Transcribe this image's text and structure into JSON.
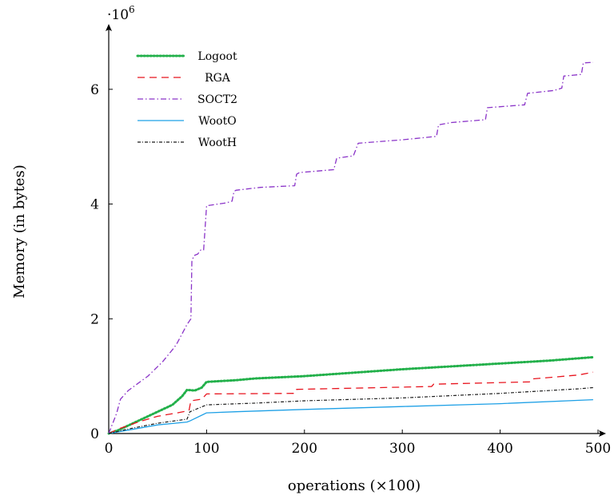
{
  "chart_data": {
    "type": "line",
    "title": "",
    "xlabel": "operations (×100)",
    "ylabel": "Memory (in bytes)",
    "y_multiplier": "·10",
    "y_multiplier_exp": "6",
    "xlim": [
      0,
      500
    ],
    "ylim": [
      0,
      7
    ],
    "xticks": [
      0,
      100,
      200,
      300,
      400,
      500
    ],
    "yticks": [
      0,
      2,
      4,
      6
    ],
    "x_tick_labels": [
      "0",
      "100",
      "200",
      "300",
      "400",
      "500"
    ],
    "y_tick_labels": [
      "0",
      "2",
      "4",
      "6"
    ],
    "grid": false,
    "legend_position": "top-left",
    "series": [
      {
        "name": "Logoot",
        "color": "#22b04a",
        "style": "dotted-thick",
        "points": [
          [
            0,
            0
          ],
          [
            10,
            0.06
          ],
          [
            30,
            0.22
          ],
          [
            50,
            0.38
          ],
          [
            65,
            0.5
          ],
          [
            75,
            0.65
          ],
          [
            80,
            0.76
          ],
          [
            88,
            0.75
          ],
          [
            95,
            0.8
          ],
          [
            100,
            0.9
          ],
          [
            130,
            0.93
          ],
          [
            150,
            0.96
          ],
          [
            200,
            1.0
          ],
          [
            250,
            1.06
          ],
          [
            300,
            1.12
          ],
          [
            350,
            1.17
          ],
          [
            400,
            1.22
          ],
          [
            450,
            1.27
          ],
          [
            495,
            1.33
          ]
        ]
      },
      {
        "name": "RGA",
        "color": "#e8141e",
        "style": "dashed",
        "points": [
          [
            0,
            0
          ],
          [
            10,
            0.08
          ],
          [
            30,
            0.2
          ],
          [
            50,
            0.3
          ],
          [
            70,
            0.36
          ],
          [
            82,
            0.4
          ],
          [
            84,
            0.57
          ],
          [
            95,
            0.6
          ],
          [
            100,
            0.69
          ],
          [
            190,
            0.7
          ],
          [
            192,
            0.77
          ],
          [
            330,
            0.82
          ],
          [
            332,
            0.86
          ],
          [
            430,
            0.9
          ],
          [
            432,
            0.95
          ],
          [
            480,
            1.02
          ],
          [
            495,
            1.07
          ]
        ]
      },
      {
        "name": "SOCT2",
        "color": "#8a33c8",
        "style": "dashdot",
        "points": [
          [
            0,
            0
          ],
          [
            8,
            0.35
          ],
          [
            12,
            0.6
          ],
          [
            20,
            0.75
          ],
          [
            40,
            1.0
          ],
          [
            55,
            1.25
          ],
          [
            67,
            1.5
          ],
          [
            70,
            1.58
          ],
          [
            80,
            1.9
          ],
          [
            84,
            2.0
          ],
          [
            85,
            3.0
          ],
          [
            87,
            3.1
          ],
          [
            91,
            3.13
          ],
          [
            94,
            3.2
          ],
          [
            97,
            3.2
          ],
          [
            100,
            3.97
          ],
          [
            120,
            4.02
          ],
          [
            126,
            4.05
          ],
          [
            128,
            4.22
          ],
          [
            130,
            4.24
          ],
          [
            155,
            4.29
          ],
          [
            190,
            4.32
          ],
          [
            192,
            4.52
          ],
          [
            195,
            4.55
          ],
          [
            230,
            4.6
          ],
          [
            233,
            4.8
          ],
          [
            250,
            4.84
          ],
          [
            255,
            5.06
          ],
          [
            300,
            5.12
          ],
          [
            335,
            5.18
          ],
          [
            337,
            5.38
          ],
          [
            350,
            5.42
          ],
          [
            385,
            5.47
          ],
          [
            387,
            5.68
          ],
          [
            425,
            5.73
          ],
          [
            428,
            5.93
          ],
          [
            455,
            5.98
          ],
          [
            463,
            6.02
          ],
          [
            465,
            6.23
          ],
          [
            483,
            6.26
          ],
          [
            485,
            6.46
          ],
          [
            495,
            6.47
          ]
        ]
      },
      {
        "name": "WootO",
        "color": "#1ea0e6",
        "style": "solid",
        "points": [
          [
            0,
            0
          ],
          [
            20,
            0.06
          ],
          [
            50,
            0.15
          ],
          [
            80,
            0.2
          ],
          [
            83,
            0.22
          ],
          [
            100,
            0.36
          ],
          [
            130,
            0.38
          ],
          [
            200,
            0.42
          ],
          [
            300,
            0.47
          ],
          [
            400,
            0.52
          ],
          [
            495,
            0.59
          ]
        ]
      },
      {
        "name": "WootH",
        "color": "#1a1a1a",
        "style": "dashdot-fine",
        "points": [
          [
            0,
            0
          ],
          [
            20,
            0.08
          ],
          [
            50,
            0.18
          ],
          [
            80,
            0.25
          ],
          [
            83,
            0.38
          ],
          [
            100,
            0.5
          ],
          [
            150,
            0.53
          ],
          [
            200,
            0.57
          ],
          [
            300,
            0.62
          ],
          [
            400,
            0.7
          ],
          [
            480,
            0.78
          ],
          [
            495,
            0.8
          ]
        ]
      }
    ]
  }
}
